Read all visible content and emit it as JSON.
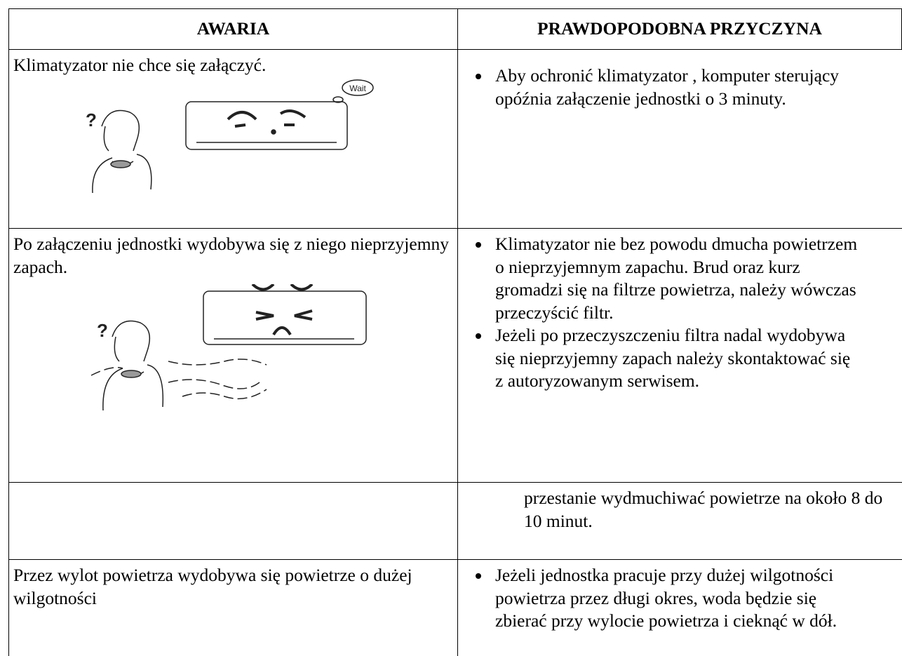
{
  "table": {
    "headers": [
      "AWARIA",
      "PRAWDOPODOBNA PRZYCZYNA"
    ],
    "rows": [
      {
        "problem": "Klimatyzator nie chce się załączyć.",
        "causes": [
          "Aby ochronić klimatyzator , komputer sterujący opóźnia załączenie jednostki o 3 minuty."
        ],
        "illustration": {
          "question": "?",
          "bubble": "Wait"
        }
      },
      {
        "problem": "Po załączeniu jednostki wydobywa się z niego nieprzyjemny zapach.",
        "causes": [
          "Klimatyzator nie bez powodu dmucha powietrzem o nieprzyjemnym zapachu. Brud oraz kurz gromadzi się na filtrze powietrza, należy wówczas przeczyścić filtr.",
          "Jeżeli po przeczyszczeniu filtra nadal wydobywa się nieprzyjemny zapach należy skontaktować się z autoryzowanym serwisem."
        ],
        "illustration": {
          "question": "?"
        }
      },
      {
        "continuation": "przestanie wydmuchiwać powietrze na około 8 do 10 minut."
      },
      {
        "problem": "Przez wylot powietrza wydobywa się powietrze o dużej wilgotności",
        "causes": [
          "Jeżeli jednostka pracuje przy dużej wilgotności powietrza przez długi okres, woda będzie się zbierać przy wylocie powietrza i cieknąć w dół."
        ]
      }
    ]
  }
}
